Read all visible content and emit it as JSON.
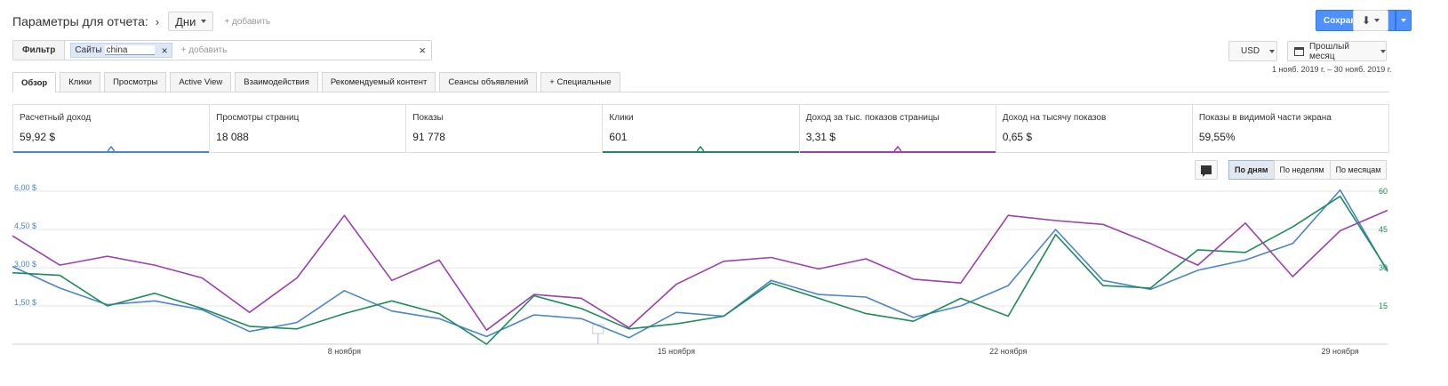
{
  "header": {
    "title": "Параметры для отчета:",
    "dimension": "Дни",
    "add_label": "+ добавить",
    "save_label": "Сохранить как",
    "download_icon": "download-icon"
  },
  "filter": {
    "button_label": "Фильтр",
    "chip_label": "Сайты",
    "chip_value": "china",
    "add_placeholder": "+ добавить"
  },
  "controls": {
    "currency": "USD",
    "date_preset": "Прошлый месяц",
    "date_range": "1 нояб. 2019 г. – 30 нояб. 2019 г."
  },
  "tabs": [
    {
      "label": "Обзор",
      "active": true
    },
    {
      "label": "Клики",
      "active": false
    },
    {
      "label": "Просмотры",
      "active": false
    },
    {
      "label": "Active View",
      "active": false
    },
    {
      "label": "Взаимодействия",
      "active": false
    },
    {
      "label": "Рекомендуемый контент",
      "active": false
    },
    {
      "label": "Сеансы объявлений",
      "active": false
    },
    {
      "label": "+  Специальные",
      "active": false
    }
  ],
  "metrics": [
    {
      "label": "Расчетный доход",
      "value": "59,92 $",
      "selected": true,
      "color": "#4a86c8"
    },
    {
      "label": "Просмотры страниц",
      "value": "18 088",
      "selected": false,
      "color": ""
    },
    {
      "label": "Показы",
      "value": "91 778",
      "selected": false,
      "color": ""
    },
    {
      "label": "Клики",
      "value": "601",
      "selected": true,
      "color": "#1e8c5a"
    },
    {
      "label": "Доход за тыс. показов страницы",
      "value": "3,31 $",
      "selected": true,
      "color": "#9c3fb0"
    },
    {
      "label": "Доход на тысячу показов",
      "value": "0,65 $",
      "selected": false,
      "color": ""
    },
    {
      "label": "Показы в видимой части экрана",
      "value": "59,55%",
      "selected": false,
      "color": ""
    }
  ],
  "granularity": [
    {
      "label": "По дням",
      "active": true
    },
    {
      "label": "По неделям",
      "active": false
    },
    {
      "label": "По месяцам",
      "active": false
    }
  ],
  "chart_data": {
    "type": "line",
    "x": [
      1,
      2,
      3,
      4,
      5,
      6,
      7,
      8,
      9,
      10,
      11,
      12,
      13,
      14,
      15,
      16,
      17,
      18,
      19,
      20,
      21,
      22,
      23,
      24,
      25,
      26,
      27,
      28,
      29,
      30
    ],
    "x_ticks": [
      {
        "x": 8,
        "label": "8 ноября"
      },
      {
        "x": 15,
        "label": "15 ноября"
      },
      {
        "x": 22,
        "label": "22 ноября"
      },
      {
        "x": 29,
        "label": "29 ноября"
      }
    ],
    "y_left": {
      "ticks": [
        "1,50 $",
        "3,00 $",
        "4,50 $",
        "6,00 $"
      ],
      "values": [
        1.5,
        3.0,
        4.5,
        6.0
      ],
      "range": [
        0,
        6.0
      ],
      "color": "#4a86c8"
    },
    "y_right": {
      "ticks": [
        "15",
        "30",
        "45",
        "60"
      ],
      "values": [
        15,
        30,
        45,
        60
      ],
      "range": [
        0,
        60
      ],
      "color": "#1e8c5a"
    },
    "grid": true,
    "series": [
      {
        "name": "Расчетный доход",
        "axis": "left",
        "color": "#4a86c8",
        "values": [
          3.05,
          2.2,
          1.55,
          1.7,
          1.35,
          0.5,
          0.85,
          2.1,
          1.3,
          1.0,
          0.3,
          1.15,
          1.0,
          0.25,
          1.25,
          1.1,
          2.5,
          1.95,
          1.85,
          1.05,
          1.5,
          2.3,
          4.5,
          2.5,
          2.15,
          2.9,
          3.3,
          3.95,
          6.05,
          2.85
        ]
      },
      {
        "name": "Клики",
        "axis": "right",
        "color": "#1e8c5a",
        "values": [
          28,
          27,
          15,
          20,
          14,
          7,
          6,
          12,
          17,
          12,
          0,
          19,
          14,
          6,
          8,
          11,
          24,
          18,
          12,
          9,
          18,
          11,
          43,
          23,
          22,
          37,
          36,
          46,
          58,
          29
        ]
      },
      {
        "name": "Доход за тыс. показов страницы",
        "axis": "left",
        "color": "#9c3fb0",
        "values": [
          4.25,
          3.1,
          3.45,
          3.1,
          2.6,
          1.25,
          2.6,
          5.05,
          2.5,
          3.3,
          0.55,
          1.95,
          1.8,
          0.65,
          2.35,
          3.25,
          3.4,
          2.95,
          3.35,
          2.55,
          2.4,
          5.05,
          4.85,
          4.7,
          3.95,
          3.1,
          4.75,
          2.65,
          4.45,
          5.25
        ]
      }
    ]
  }
}
